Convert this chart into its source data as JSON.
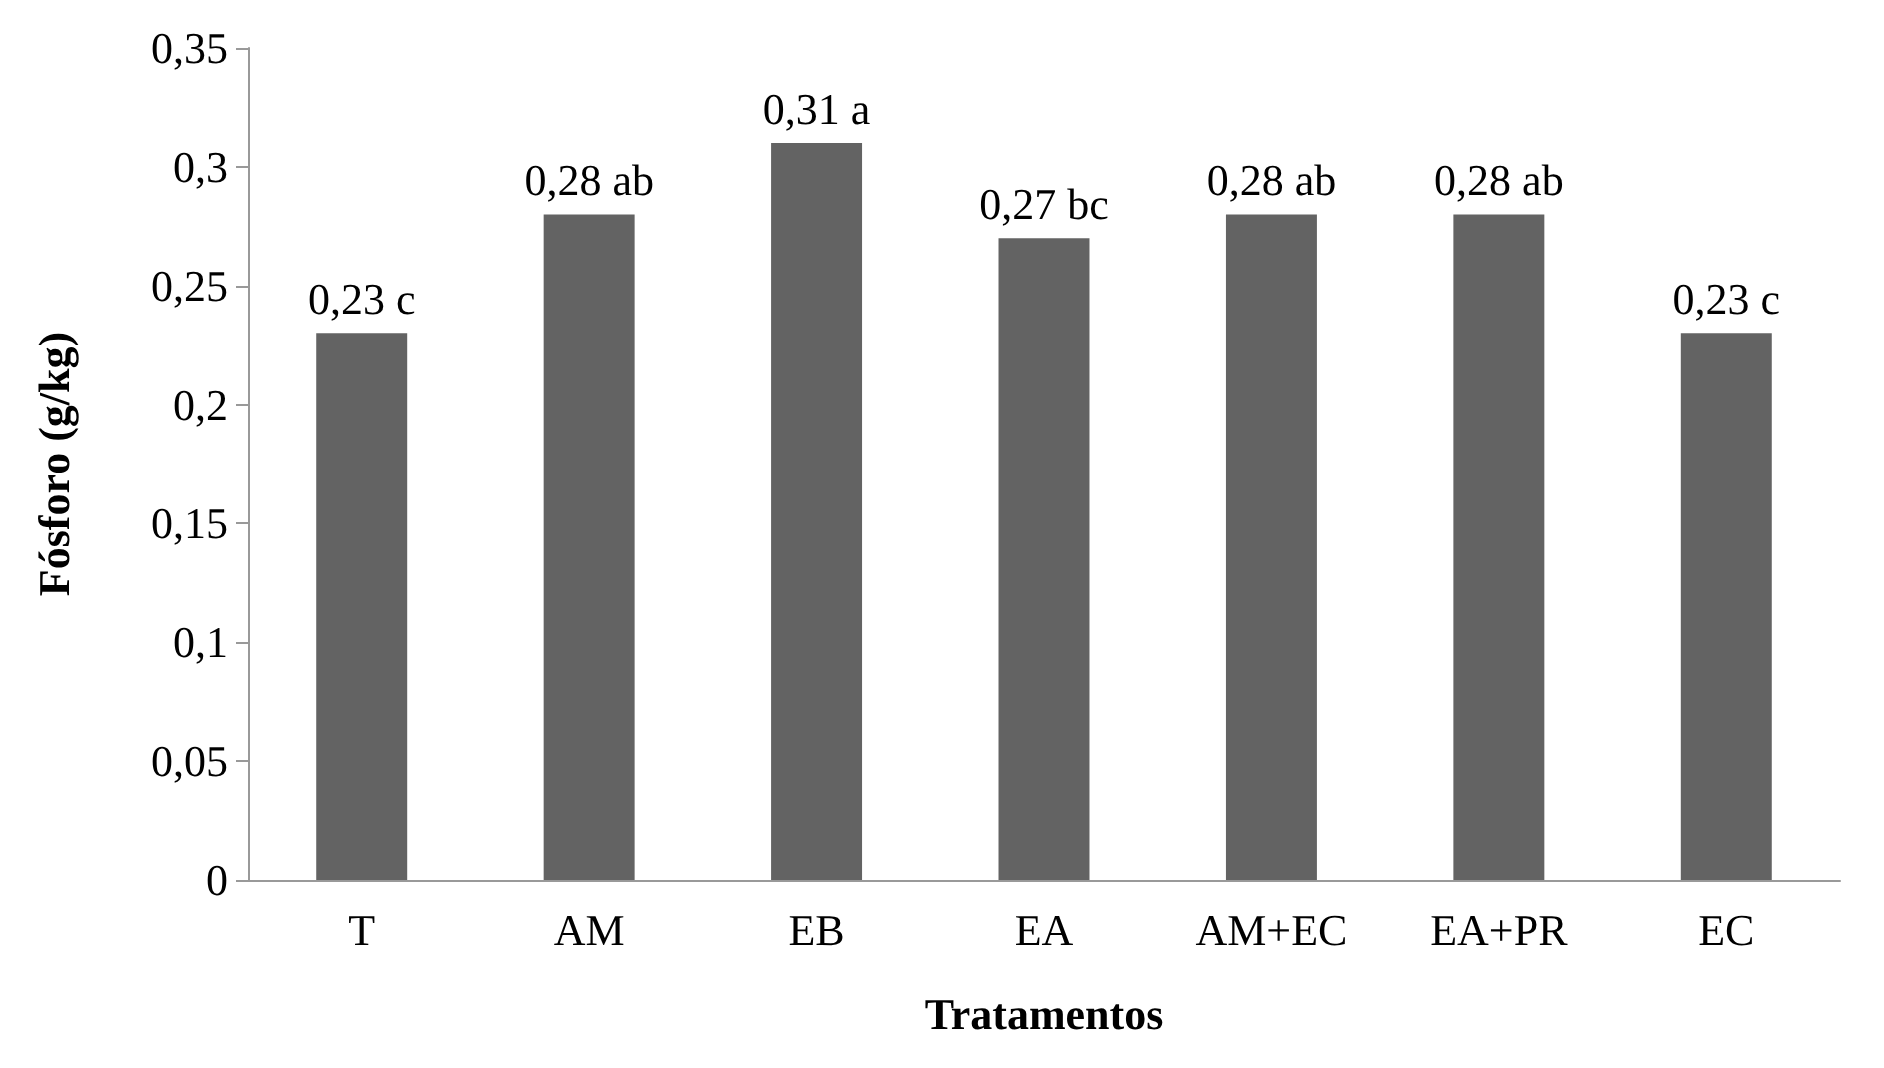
{
  "chart_data": {
    "type": "bar",
    "xlabel": "Tratamentos",
    "ylabel": "Fósforo (g/kg)",
    "categories": [
      "T",
      "AM",
      "EB",
      "EA",
      "AM+EC",
      "EA+PR",
      "EC"
    ],
    "values": [
      0.23,
      0.28,
      0.31,
      0.27,
      0.28,
      0.28,
      0.23
    ],
    "value_labels": [
      "0,23 c",
      "0,28 ab",
      "0,31 a",
      "0,27 bc",
      "0,28 ab",
      "0,28 ab",
      "0,23 c"
    ],
    "color": "#636363",
    "ylim": [
      0,
      0.35
    ],
    "yticks": [
      0,
      {
        "value": 0.05,
        "label": "0,05"
      },
      {
        "value": 0.1,
        "label": "0,1"
      },
      {
        "value": 0.15,
        "label": "0,15"
      },
      {
        "value": 0.2,
        "label": "0,2"
      },
      {
        "value": 0.25,
        "label": "0,25"
      },
      {
        "value": 0.3,
        "label": "0,3"
      },
      {
        "value": 0.35,
        "label": "0,35"
      }
    ],
    "grid": false
  }
}
